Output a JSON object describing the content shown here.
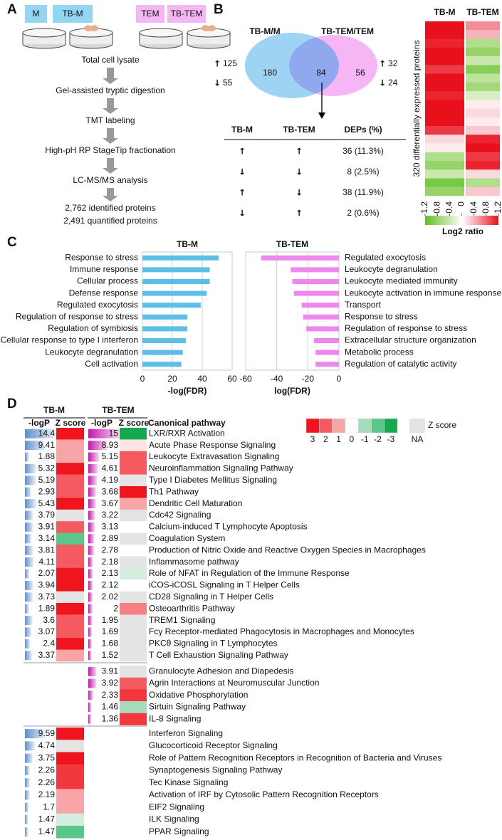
{
  "panel_a": {
    "label": "A",
    "samples": [
      "M",
      "TB-M",
      "TEM",
      "TB-TEM"
    ],
    "steps": [
      "Total cell lysate",
      "Gel-assisted tryptic digestion",
      "TMT labeling",
      "High-pH RP StageTip fractionation",
      "LC-MS/MS analysis"
    ],
    "results": [
      "2,762 identified proteins",
      "2,491 quantified proteins"
    ]
  },
  "panel_b": {
    "label": "B",
    "up": "↑",
    "down": "↓",
    "up_color": "#b01010",
    "down_color": "#1f9e4a",
    "venn": {
      "left_title": "TB-M/M",
      "right_title": "TB-TEM/TEM",
      "left_only": 180,
      "overlap": 84,
      "right_only": 56,
      "left_up": 125,
      "left_down": 55,
      "right_up": 32,
      "right_down": 24
    },
    "table": {
      "headers": [
        "TB-M",
        "TB-TEM",
        "DEPs (%)"
      ],
      "rows": [
        [
          "↑",
          "↑",
          "36 (11.3%)"
        ],
        [
          "↓",
          "↓",
          "8 (2.5%)"
        ],
        [
          "↑",
          "↓",
          "38 (11.9%)"
        ],
        [
          "↓",
          "↑",
          "2 (0.6%)"
        ]
      ]
    },
    "heatmap": {
      "columns": [
        "TB-M",
        "TB-TEM"
      ],
      "ylabel": "320 differentially expressed proteins",
      "values": [
        [
          1.2,
          1.2,
          1.1,
          1.2,
          1.2,
          1.0,
          1.2,
          1.2,
          1.1,
          1.2,
          1.2,
          1.2,
          1.0,
          0.2,
          0.1,
          -0.6,
          -0.8,
          -0.4,
          -1.0,
          -0.8
        ],
        [
          0.6,
          0.4,
          -0.6,
          -0.8,
          -0.4,
          -0.9,
          -0.5,
          -0.7,
          -0.3,
          0.1,
          0.2,
          0.1,
          0.3,
          1.1,
          1.2,
          1.0,
          1.1,
          0.2,
          -0.6,
          0.3
        ]
      ],
      "colorbar": {
        "ticks": [
          -1.2,
          -0.8,
          -0.4,
          0,
          0.4,
          0.8,
          1.2
        ],
        "colors": [
          "#5bbf21",
          "#98d36a",
          "#c9e8ad",
          "#ffffff",
          "#f7b4bc",
          "#f06472",
          "#e8101a"
        ],
        "label": "Log2 ratio"
      }
    }
  },
  "panel_c": {
    "label": "C"
  },
  "chart_data": [
    {
      "type": "bar",
      "orientation": "horizontal",
      "title": "TB-M",
      "categories": [
        "Response to stress",
        "Immune response",
        "Cellular process",
        "Defense response",
        "Regulated exocytosis",
        "Regulation of response to stress",
        "Regulation of symbiosis",
        "Cellular response to type I interferon",
        "Leukocyte degranulation",
        "Cell activation"
      ],
      "values": [
        51,
        45,
        45,
        43,
        39,
        30,
        30,
        29,
        27,
        26
      ],
      "color": "#5bbfe8",
      "label_colors": [
        "#e8822a",
        "#e8822a",
        "#111111",
        "#111111",
        "#111111",
        "#111111",
        "#111111",
        "#111111",
        "#111111",
        "#111111"
      ],
      "label_side": "left",
      "xlim": [
        0,
        60
      ],
      "xticks": [
        0,
        20,
        40,
        60
      ],
      "xlabel": "-log(FDR)",
      "grid": true
    },
    {
      "type": "bar",
      "orientation": "horizontal",
      "title": "TB-TEM",
      "categories": [
        "Regulated exocytosis",
        "Leukocyte degranulation",
        "Leukocyte mediated immunity",
        "Leukocyte activation in immune response",
        "Transport",
        "Response to stress",
        "Regulation of response to stress",
        "Extracellular structure organization",
        "Metabolic process",
        "Regulation of catalytic activity"
      ],
      "values": [
        -50,
        -31,
        -30,
        -29,
        -24,
        -23,
        -21,
        -16,
        -15,
        -15
      ],
      "color": "#ee88ee",
      "label_colors": [
        "#e8822a",
        "#111111",
        "#111111",
        "#111111",
        "#111111",
        "#111111",
        "#111111",
        "#111111",
        "#111111",
        "#111111"
      ],
      "label_side": "right",
      "xlim": [
        -60,
        0
      ],
      "xticks": [
        -60,
        -40,
        -20,
        0
      ],
      "xlabel": "log(FDR)",
      "grid": true
    }
  ],
  "panel_d": {
    "label": "D",
    "headers": {
      "tb_m": "TB-M",
      "tb_tem": "TB-TEM",
      "logp": "-logP",
      "z": "Z score",
      "pathway": "Canonical pathway"
    },
    "z_legend": {
      "values": [
        3,
        2,
        1,
        0,
        -1,
        -2,
        -3
      ],
      "colors": [
        "#f0141e",
        "#f45a5f",
        "#f8a5a8",
        "#ffffff",
        "#a6dcbc",
        "#5bc68a",
        "#16a84f"
      ],
      "title": "Z score",
      "na_label": "NA",
      "na_color": "#e4e4e4"
    },
    "groups": [
      {
        "rows": [
          {
            "pathway": "LXR/RXR Activation",
            "color": "#e8822a",
            "tb_m": {
              "logp": 14.4,
              "z": 3
            },
            "tb_tem": {
              "logp": 15,
              "z": -3
            }
          },
          {
            "pathway": "Acute Phase Response Signaling",
            "color": "#e8822a",
            "tb_m": {
              "logp": 9.41,
              "z": 1
            },
            "tb_tem": {
              "logp": 8.93,
              "z": 0.3
            }
          },
          {
            "pathway": "Leukocyte Extravasation Signaling",
            "color": "#e8822a",
            "tb_m": {
              "logp": 1.88,
              "z": 1
            },
            "tb_tem": {
              "logp": 5.15,
              "z": 2
            }
          },
          {
            "pathway": "Neuroinflammation Signaling Pathway",
            "tb_m": {
              "logp": 5.32,
              "z": 3
            },
            "tb_tem": {
              "logp": 4.61,
              "z": 2
            }
          },
          {
            "pathway": "Type I Diabetes Mellitus Signaling",
            "tb_m": {
              "logp": 5.19,
              "z": 2
            },
            "tb_tem": {
              "logp": 4.19,
              "z": null
            }
          },
          {
            "pathway": "Th1 Pathway",
            "color": "#e8822a",
            "tb_m": {
              "logp": 2.93,
              "z": 2
            },
            "tb_tem": {
              "logp": 3.68,
              "z": 3
            }
          },
          {
            "pathway": "Dendritic Cell Maturation",
            "color": "#e8822a",
            "tb_m": {
              "logp": 5.43,
              "z": 3
            },
            "tb_tem": {
              "logp": 3.67,
              "z": 1
            }
          },
          {
            "pathway": "Cdc42 Signaling",
            "tb_m": {
              "logp": 3.79,
              "z": null
            },
            "tb_tem": {
              "logp": 3.22,
              "z": null
            }
          },
          {
            "pathway": "Calcium-induced T Lymphocyte Apoptosis",
            "tb_m": {
              "logp": 3.91,
              "z": 2
            },
            "tb_tem": {
              "logp": 3.13,
              "z": 0
            }
          },
          {
            "pathway": "Coagulation System",
            "tb_m": {
              "logp": 3.14,
              "z": -2
            },
            "tb_tem": {
              "logp": 2.89,
              "z": null
            }
          },
          {
            "pathway": "Production of Nitric Oxide and Reactive Oxygen Species in Macrophages",
            "tb_m": {
              "logp": 3.81,
              "z": 2
            },
            "tb_tem": {
              "logp": 2.78,
              "z": 0
            }
          },
          {
            "pathway": "Inflammasome pathway",
            "tb_m": {
              "logp": 4.11,
              "z": 2
            },
            "tb_tem": {
              "logp": 2.18,
              "z": null
            }
          },
          {
            "pathway": "Role of NFAT in Regulation of the Immune Response",
            "tb_m": {
              "logp": 2.07,
              "z": 3
            },
            "tb_tem": {
              "logp": 2.13,
              "z": -0.5
            }
          },
          {
            "pathway": "iCOS-iCOSL Signaling in T Helper Cells",
            "tb_m": {
              "logp": 3.94,
              "z": 3
            },
            "tb_tem": {
              "logp": 2.12,
              "z": 0
            }
          },
          {
            "pathway": "CD28 Signaling in T Helper Cells",
            "tb_m": {
              "logp": 3.73,
              "z": null
            },
            "tb_tem": {
              "logp": 2.02,
              "z": null
            }
          },
          {
            "pathway": "Osteoarthritis Pathway",
            "tb_m": {
              "logp": 1.89,
              "z": 3
            },
            "tb_tem": {
              "logp": 2,
              "z": 1.5
            }
          },
          {
            "pathway": "TREM1 Signaling",
            "tb_m": {
              "logp": 3.6,
              "z": 2
            },
            "tb_tem": {
              "logp": 1.95,
              "z": null
            }
          },
          {
            "pathway": "Fcγ Receptor-mediated Phagocytosis in Macrophages and Monocytes",
            "tb_m": {
              "logp": 3.07,
              "z": 2
            },
            "tb_tem": {
              "logp": 1.69,
              "z": null
            }
          },
          {
            "pathway": "PKCθ Signaling in T Lymphocytes",
            "tb_m": {
              "logp": 2.4,
              "z": 3
            },
            "tb_tem": {
              "logp": 1.68,
              "z": null
            }
          },
          {
            "pathway": "T Cell Exhaustion Signaling Pathway",
            "tb_m": {
              "logp": 3.37,
              "z": 1
            },
            "tb_tem": {
              "logp": 1.52,
              "z": null
            }
          }
        ]
      },
      {
        "rows": [
          {
            "pathway": "Granulocyte Adhesion and Diapedesis",
            "color": "#e8822a",
            "tb_tem": {
              "logp": 3.91,
              "z": null
            }
          },
          {
            "pathway": "Agrin Interactions at Neuromuscular Junction",
            "color": "#e8822a",
            "tb_tem": {
              "logp": 3.92,
              "z": 2
            }
          },
          {
            "pathway": "Oxidative Phosphorylation",
            "color": "#e8822a",
            "tb_tem": {
              "logp": 2.33,
              "z": 2.5
            }
          },
          {
            "pathway": "Sirtuin Signaling Pathway",
            "tb_tem": {
              "logp": 1.46,
              "z": -1
            }
          },
          {
            "pathway": "IL-8 Signaling",
            "tb_tem": {
              "logp": 1.36,
              "z": 2.5
            }
          }
        ]
      },
      {
        "rows": [
          {
            "pathway": "Interferon Signaling",
            "color": "#e8822a",
            "tb_m": {
              "logp": 9.59,
              "z": 3
            }
          },
          {
            "pathway": "Glucocorticoid Receptor Signaling",
            "color": "#e8822a",
            "tb_m": {
              "logp": 4.74,
              "z": null
            }
          },
          {
            "pathway": "Role of Pattern Recognition Receptors in Recognition of Bacteria and Viruses",
            "tb_m": {
              "logp": 3.75,
              "z": 3
            }
          },
          {
            "pathway": "Synaptogenesis Signaling Pathway",
            "tb_m": {
              "logp": 2.26,
              "z": 2.5
            }
          },
          {
            "pathway": "Tec Kinase Signaling",
            "tb_m": {
              "logp": 2.26,
              "z": 2.5
            }
          },
          {
            "pathway": "Activation of IRF by Cytosolic Pattern Recognition Receptors",
            "tb_m": {
              "logp": 2.19,
              "z": 1
            }
          },
          {
            "pathway": "EIF2 Signaling",
            "tb_m": {
              "logp": 1.7,
              "z": 1
            }
          },
          {
            "pathway": "ILK Signaling",
            "tb_m": {
              "logp": 1.47,
              "z": -0.5
            }
          },
          {
            "pathway": "PPAR Signaling",
            "tb_m": {
              "logp": 1.47,
              "z": -2
            }
          }
        ]
      }
    ]
  }
}
